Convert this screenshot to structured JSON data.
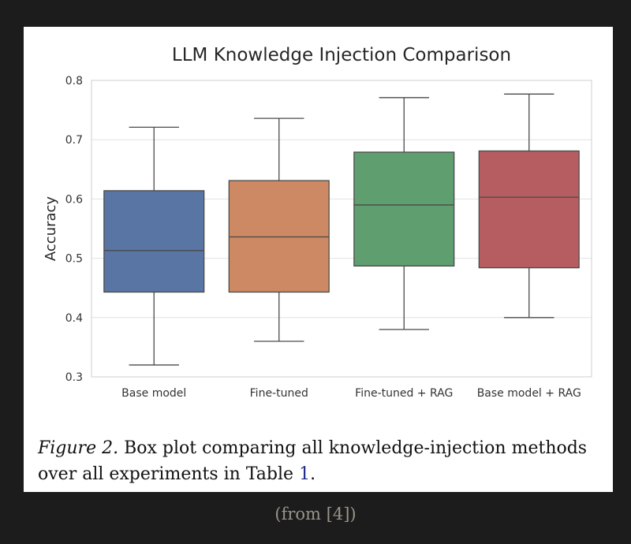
{
  "chart_data": {
    "type": "box",
    "title": "LLM Knowledge Injection Comparison",
    "xlabel": "",
    "ylabel": "Accuracy",
    "ylim": [
      0.3,
      0.8
    ],
    "yticks": [
      "0.3",
      "0.4",
      "0.5",
      "0.6",
      "0.7",
      "0.8"
    ],
    "grid": true,
    "categories": [
      "Base model",
      "Fine-tuned",
      "Fine-tuned + RAG",
      "Base model + RAG"
    ],
    "boxes": [
      {
        "min": 0.32,
        "q1": 0.443,
        "median": 0.513,
        "q3": 0.614,
        "max": 0.721,
        "color": "#5975a4"
      },
      {
        "min": 0.36,
        "q1": 0.443,
        "median": 0.536,
        "q3": 0.631,
        "max": 0.736,
        "color": "#cc8963"
      },
      {
        "min": 0.38,
        "q1": 0.487,
        "median": 0.59,
        "q3": 0.679,
        "max": 0.771,
        "color": "#5f9e6e"
      },
      {
        "min": 0.4,
        "q1": 0.484,
        "median": 0.603,
        "q3": 0.681,
        "max": 0.777,
        "color": "#b55d60"
      }
    ]
  },
  "caption": {
    "label": "Figure 2.",
    "text_before_ref": " Box plot comparing all knowledge-injection methods over all experiments in  Table ",
    "ref": "1",
    "text_after_ref": "."
  },
  "source": "(from [4])"
}
